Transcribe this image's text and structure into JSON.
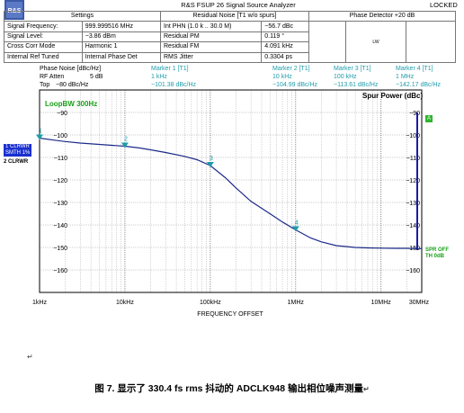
{
  "header": {
    "title": "R&S FSUP 26 Signal Source Analyzer",
    "status": "LOCKED",
    "logo_text": "R&S"
  },
  "settings_table": {
    "col1_header": "Settings",
    "col2_header": "Residual Noise [T1 w/o spurs]",
    "col3_header": "Phase Detector +20 dB",
    "rows": [
      {
        "label": "Signal Frequency:",
        "value": "999.999516 MHz",
        "res_label": "Int PHN (1.0 k .. 30.0 M)",
        "res_value": "−56.7 dBc"
      },
      {
        "label": "Signal Level:",
        "value": "−3.86 dBm",
        "res_label": "Residual PM",
        "res_value": "0.119 °"
      },
      {
        "label": "Cross Corr Mode",
        "value": "Harmonic 1",
        "res_label": "Residual FM",
        "res_value": "4.091 kHz"
      },
      {
        "label": "Internal Ref Tuned",
        "value": "Internal Phase Det",
        "res_label": "RMS Jitter",
        "res_value": "0.3304 ps"
      }
    ],
    "mini_label": "LW"
  },
  "marker_header": {
    "left_line1": "Phase Noise [dBc/Hz]",
    "left_line2_a": "RF Atten",
    "left_line2_b": "5 dB",
    "left_line3_a": "Top",
    "left_line3_b": "−80 dBc/Hz",
    "markers": [
      {
        "title": "Marker 1 [T1]",
        "freq": "1 kHz",
        "value": "−101.38 dBc/Hz"
      },
      {
        "title": "Marker 2 [T1]",
        "freq": "10 kHz",
        "value": "−104.99 dBc/Hz"
      },
      {
        "title": "Marker 3 [T1]",
        "freq": "100 kHz",
        "value": "−113.61 dBc/Hz"
      },
      {
        "title": "Marker 4 [T1]",
        "freq": "1 MHz",
        "value": "−142.17 dBc/Hz"
      }
    ]
  },
  "side_labels": {
    "trace1_a": "1 CLRWR",
    "trace1_b": "SMTH 1%",
    "trace2": "2 CLRWR",
    "box_a": "A",
    "spr_a": "SPR OFF",
    "spr_b": "TH 0dB",
    "loopbw": "LoopBW 300Hz",
    "spur_power": "Spur Power (dBc)"
  },
  "chart_data": {
    "type": "line",
    "title": "",
    "xlabel": "FREQUENCY OFFSET",
    "ylabel": "",
    "x_scale": "log",
    "xlim_hz": [
      1000,
      30000000
    ],
    "ylim": [
      -170,
      -80
    ],
    "x_ticks": [
      {
        "v": 1000,
        "label": "1kHz"
      },
      {
        "v": 10000,
        "label": "10kHz"
      },
      {
        "v": 100000,
        "label": "100kHz"
      },
      {
        "v": 1000000,
        "label": "1MHz"
      },
      {
        "v": 10000000,
        "label": "10MHz"
      },
      {
        "v": 30000000,
        "label": "30MHz"
      }
    ],
    "y_ticks": [
      -90,
      -100,
      -110,
      -120,
      -130,
      -140,
      -150,
      -160
    ],
    "right_y_ticks": [
      -90,
      -100,
      -110,
      -120,
      -130,
      -140,
      -150,
      -160
    ],
    "right_axis_label": "Spur Power (dBc)",
    "grid": true,
    "series": [
      {
        "x": [
          1000,
          1500,
          2000,
          3000,
          5000,
          7000,
          10000,
          15000,
          20000,
          30000,
          50000,
          70000,
          100000,
          150000,
          200000,
          300000,
          500000,
          700000,
          1000000,
          1500000,
          2000000,
          3000000,
          5000000,
          7000000,
          10000000,
          15000000,
          20000000,
          30000000
        ],
        "y": [
          -101.4,
          -102.3,
          -102.9,
          -103.6,
          -104.2,
          -104.6,
          -105.0,
          -105.8,
          -106.6,
          -107.8,
          -109.5,
          -111.0,
          -113.6,
          -119.0,
          -123.5,
          -129.5,
          -135.0,
          -138.7,
          -142.2,
          -145.8,
          -147.5,
          -149.2,
          -150.0,
          -150.2,
          -150.3,
          -150.4,
          -150.4,
          -150.5
        ]
      }
    ],
    "markers": [
      {
        "label": "1",
        "x": 1000,
        "y": -101.38
      },
      {
        "label": "2",
        "x": 10000,
        "y": -104.99
      },
      {
        "label": "3",
        "x": 100000,
        "y": -113.61
      },
      {
        "label": "4",
        "x": 1000000,
        "y": -142.17
      }
    ]
  },
  "caption": "图 7. 显示了 330.4 fs rms 抖动的 ADCLK948 输出相位噪声测量"
}
